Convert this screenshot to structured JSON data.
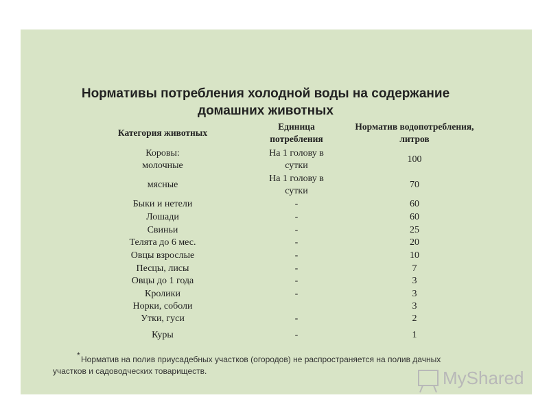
{
  "title": [
    "Нормативы потребления холодной воды на содержание",
    "домашних животных"
  ],
  "table": {
    "header": [
      [
        "Категория животных"
      ],
      [
        "Единица",
        "потребления"
      ],
      [
        "Норматив водопотребления,",
        "литров"
      ]
    ],
    "rows": [
      {
        "category": [
          "Коровы:",
          "молочные"
        ],
        "unit": [
          "На 1 голову в",
          "сутки"
        ],
        "value": 100
      },
      {
        "category": [
          "мясные"
        ],
        "unit": [
          "На 1 голову в",
          "сутки"
        ],
        "value": 70
      },
      {
        "category": [
          "Быки и нетели"
        ],
        "unit": [
          "-"
        ],
        "value": 60
      },
      {
        "category": [
          "Лошади"
        ],
        "unit": [
          "-"
        ],
        "value": 60
      },
      {
        "category": [
          "Свиньи"
        ],
        "unit": [
          "-"
        ],
        "value": 25
      },
      {
        "category": [
          "Телята до 6 мес."
        ],
        "unit": [
          "-"
        ],
        "value": 20
      },
      {
        "category": [
          "Овцы взрослые"
        ],
        "unit": [
          "-"
        ],
        "value": 10
      },
      {
        "category": [
          "Песцы, лисы"
        ],
        "unit": [
          "-"
        ],
        "value": 7
      },
      {
        "category": [
          "Овцы до 1 года"
        ],
        "unit": [
          "-"
        ],
        "value": 3
      },
      {
        "category": [
          "Кролики"
        ],
        "unit": [
          "-"
        ],
        "value": 3
      },
      {
        "category": [
          "Норки, соболи"
        ],
        "value": 3
      },
      {
        "category": [
          "Утки, гуси"
        ],
        "unit": [
          "-"
        ],
        "value": 2
      },
      {
        "category": [
          "Куры"
        ],
        "unit": [
          "-"
        ],
        "value": 1
      }
    ]
  },
  "footnote": {
    "mark": "*",
    "lines": [
      "Норматив на полив приусадебных участков (огородов) не распространяется на   полив дачных",
      "участков и садоводческих товариществ."
    ]
  },
  "watermark": "MyShared"
}
